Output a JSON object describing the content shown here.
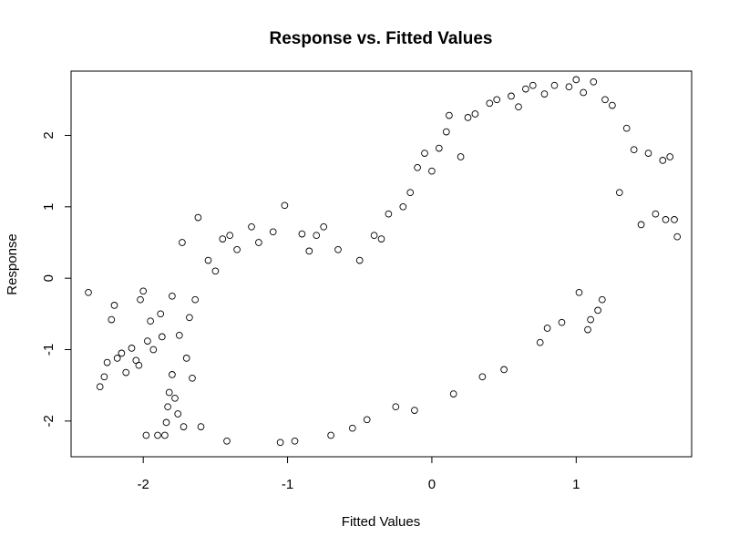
{
  "chart_data": {
    "type": "scatter",
    "title": "Response vs. Fitted Values",
    "xlabel": "Fitted Values",
    "ylabel": "Response",
    "xlim": [
      -2.5,
      1.8
    ],
    "ylim": [
      -2.5,
      2.9
    ],
    "xticks": [
      -2,
      -1,
      0,
      1
    ],
    "yticks": [
      -2,
      -1,
      0,
      1,
      2
    ],
    "grid": false,
    "legend": "none",
    "marker": "open-circle",
    "point_color": "#000000",
    "points": [
      [
        -2.38,
        -0.2
      ],
      [
        -2.3,
        -1.52
      ],
      [
        -2.27,
        -1.38
      ],
      [
        -2.25,
        -1.18
      ],
      [
        -2.22,
        -0.58
      ],
      [
        -2.2,
        -0.38
      ],
      [
        -2.18,
        -1.12
      ],
      [
        -2.15,
        -1.05
      ],
      [
        -2.12,
        -1.32
      ],
      [
        -2.08,
        -0.98
      ],
      [
        -2.05,
        -1.15
      ],
      [
        -2.03,
        -1.22
      ],
      [
        -2.02,
        -0.3
      ],
      [
        -2.0,
        -0.18
      ],
      [
        -1.98,
        -2.2
      ],
      [
        -1.97,
        -0.88
      ],
      [
        -1.95,
        -0.6
      ],
      [
        -1.93,
        -1.0
      ],
      [
        -1.9,
        -2.2
      ],
      [
        -1.88,
        -0.5
      ],
      [
        -1.87,
        -0.82
      ],
      [
        -1.85,
        -2.2
      ],
      [
        -1.84,
        -2.02
      ],
      [
        -1.83,
        -1.8
      ],
      [
        -1.82,
        -1.6
      ],
      [
        -1.8,
        -1.35
      ],
      [
        -1.8,
        -0.25
      ],
      [
        -1.78,
        -1.68
      ],
      [
        -1.76,
        -1.9
      ],
      [
        -1.75,
        -0.8
      ],
      [
        -1.73,
        0.5
      ],
      [
        -1.72,
        -2.08
      ],
      [
        -1.7,
        -1.12
      ],
      [
        -1.68,
        -0.55
      ],
      [
        -1.66,
        -1.4
      ],
      [
        -1.64,
        -0.3
      ],
      [
        -1.62,
        0.85
      ],
      [
        -1.6,
        -2.08
      ],
      [
        -1.55,
        0.25
      ],
      [
        -1.5,
        0.1
      ],
      [
        -1.45,
        0.55
      ],
      [
        -1.42,
        -2.28
      ],
      [
        -1.4,
        0.6
      ],
      [
        -1.35,
        0.4
      ],
      [
        -1.25,
        0.72
      ],
      [
        -1.2,
        0.5
      ],
      [
        -1.1,
        0.65
      ],
      [
        -1.05,
        -2.3
      ],
      [
        -1.02,
        1.02
      ],
      [
        -0.95,
        -2.28
      ],
      [
        -0.9,
        0.62
      ],
      [
        -0.85,
        0.38
      ],
      [
        -0.8,
        0.6
      ],
      [
        -0.75,
        0.72
      ],
      [
        -0.7,
        -2.2
      ],
      [
        -0.65,
        0.4
      ],
      [
        -0.55,
        -2.1
      ],
      [
        -0.5,
        0.25
      ],
      [
        -0.45,
        -1.98
      ],
      [
        -0.4,
        0.6
      ],
      [
        -0.35,
        0.55
      ],
      [
        -0.3,
        0.9
      ],
      [
        -0.25,
        -1.8
      ],
      [
        -0.2,
        1.0
      ],
      [
        -0.15,
        1.2
      ],
      [
        -0.12,
        -1.85
      ],
      [
        -0.1,
        1.55
      ],
      [
        -0.05,
        1.75
      ],
      [
        0.0,
        1.5
      ],
      [
        0.05,
        1.82
      ],
      [
        0.1,
        2.05
      ],
      [
        0.12,
        2.28
      ],
      [
        0.15,
        -1.62
      ],
      [
        0.2,
        1.7
      ],
      [
        0.25,
        2.25
      ],
      [
        0.3,
        2.3
      ],
      [
        0.35,
        -1.38
      ],
      [
        0.4,
        2.45
      ],
      [
        0.45,
        2.5
      ],
      [
        0.5,
        -1.28
      ],
      [
        0.55,
        2.55
      ],
      [
        0.6,
        2.4
      ],
      [
        0.65,
        2.65
      ],
      [
        0.7,
        2.7
      ],
      [
        0.75,
        -0.9
      ],
      [
        0.78,
        2.58
      ],
      [
        0.8,
        -0.7
      ],
      [
        0.85,
        2.7
      ],
      [
        0.9,
        -0.62
      ],
      [
        0.95,
        2.68
      ],
      [
        1.0,
        2.78
      ],
      [
        1.02,
        -0.2
      ],
      [
        1.05,
        2.6
      ],
      [
        1.08,
        -0.72
      ],
      [
        1.1,
        -0.58
      ],
      [
        1.12,
        2.75
      ],
      [
        1.15,
        -0.45
      ],
      [
        1.18,
        -0.3
      ],
      [
        1.2,
        2.5
      ],
      [
        1.25,
        2.42
      ],
      [
        1.3,
        1.2
      ],
      [
        1.35,
        2.1
      ],
      [
        1.4,
        1.8
      ],
      [
        1.45,
        0.75
      ],
      [
        1.5,
        1.75
      ],
      [
        1.55,
        0.9
      ],
      [
        1.6,
        1.65
      ],
      [
        1.62,
        0.82
      ],
      [
        1.65,
        1.7
      ],
      [
        1.68,
        0.82
      ],
      [
        1.7,
        0.58
      ]
    ]
  }
}
